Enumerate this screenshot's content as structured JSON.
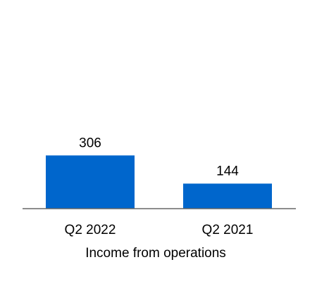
{
  "chart_data": {
    "type": "bar",
    "categories": [
      "Q2 2022",
      "Q2 2021"
    ],
    "values": [
      306,
      144
    ],
    "data_labels": [
      "306",
      "144"
    ],
    "title": "",
    "xlabel": "Income from operations",
    "ylabel": "",
    "ylim": [
      0,
      1200
    ],
    "grid": false,
    "legend": "none",
    "bar_color": "#0066CC",
    "axis_color": "#666666"
  }
}
